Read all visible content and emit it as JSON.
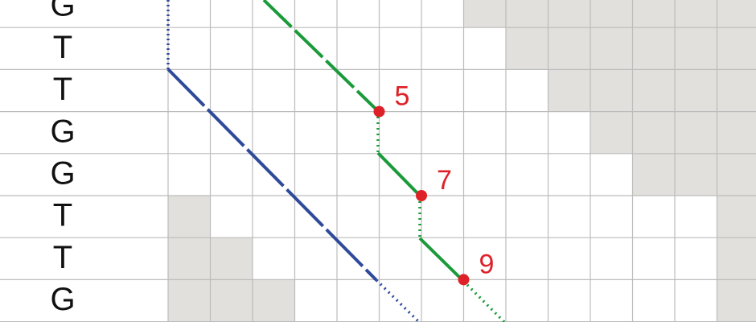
{
  "rows": [
    "G",
    "T",
    "T",
    "G",
    "G",
    "T",
    "T",
    "G"
  ],
  "colors": {
    "grid": "#bcbcbc",
    "shade": "#e1e0dc",
    "blue": "#2e4a9a",
    "green": "#1a9a3a",
    "point": "#de2128",
    "text": "#111111"
  },
  "shaded_cells": [
    [
      0,
      7
    ],
    [
      0,
      8
    ],
    [
      0,
      9
    ],
    [
      0,
      10
    ],
    [
      0,
      11
    ],
    [
      0,
      12
    ],
    [
      0,
      13
    ],
    [
      1,
      8
    ],
    [
      1,
      9
    ],
    [
      1,
      10
    ],
    [
      1,
      11
    ],
    [
      1,
      12
    ],
    [
      1,
      13
    ],
    [
      2,
      9
    ],
    [
      2,
      10
    ],
    [
      2,
      11
    ],
    [
      2,
      12
    ],
    [
      2,
      13
    ],
    [
      3,
      10
    ],
    [
      3,
      11
    ],
    [
      3,
      12
    ],
    [
      3,
      13
    ],
    [
      4,
      11
    ],
    [
      4,
      12
    ],
    [
      4,
      13
    ],
    [
      5,
      0
    ],
    [
      5,
      13
    ],
    [
      6,
      0
    ],
    [
      6,
      1
    ],
    [
      6,
      13
    ],
    [
      7,
      0
    ],
    [
      7,
      1
    ],
    [
      7,
      2
    ],
    [
      7,
      13
    ]
  ],
  "points": [
    {
      "label": "5",
      "row": 2,
      "col": 5
    },
    {
      "label": "7",
      "row": 4,
      "col": 6
    },
    {
      "label": "9",
      "row": 6,
      "col": 7
    }
  ]
}
